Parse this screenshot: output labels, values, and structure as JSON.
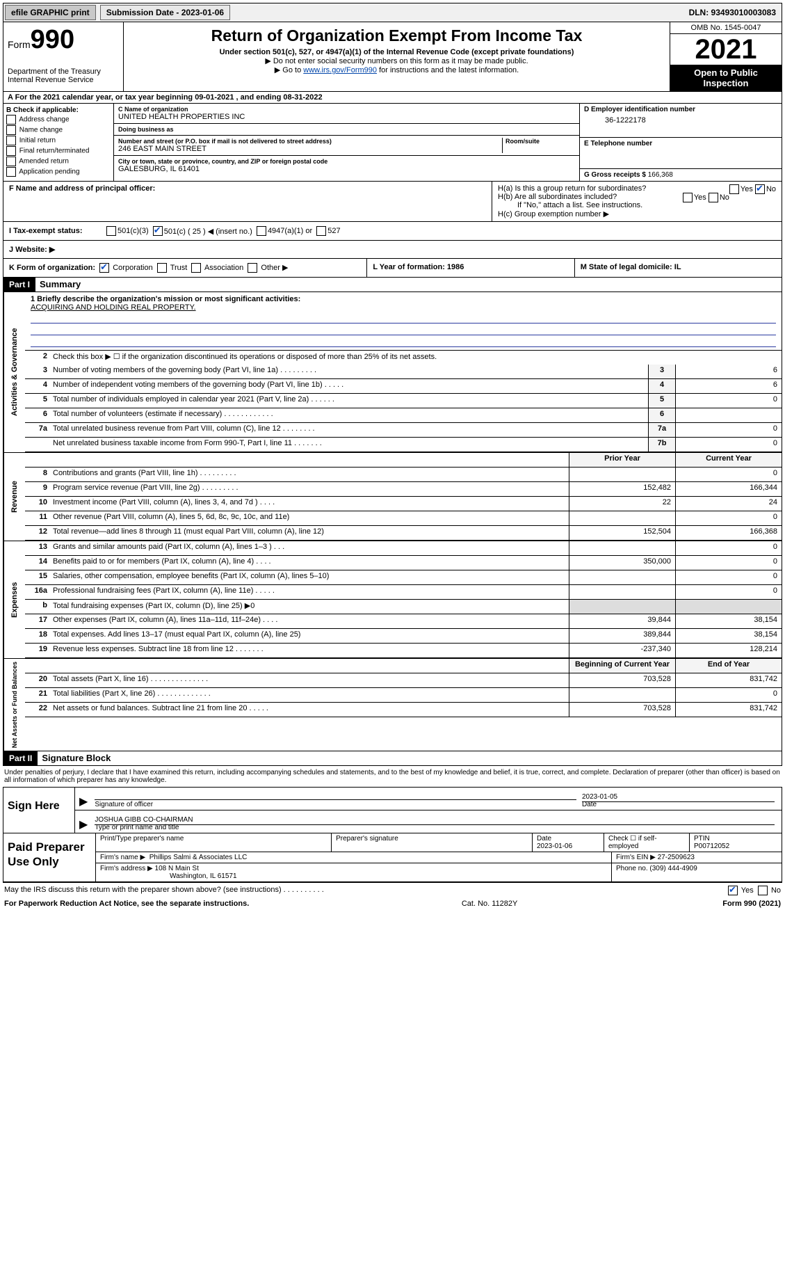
{
  "topbar": {
    "efile": "efile GRAPHIC print",
    "sub_label": "Submission Date - 2023-01-06",
    "dln": "DLN: 93493010003083"
  },
  "header": {
    "form_prefix": "Form",
    "form_no": "990",
    "dept": "Department of the Treasury",
    "irs": "Internal Revenue Service",
    "title": "Return of Organization Exempt From Income Tax",
    "sub1": "Under section 501(c), 527, or 4947(a)(1) of the Internal Revenue Code (except private foundations)",
    "sub2": "▶ Do not enter social security numbers on this form as it may be made public.",
    "sub3_pre": "▶ Go to ",
    "sub3_link": "www.irs.gov/Form990",
    "sub3_post": " for instructions and the latest information.",
    "omb": "OMB No. 1545-0047",
    "year": "2021",
    "open": "Open to Public Inspection"
  },
  "A": {
    "text": "A For the 2021 calendar year, or tax year beginning 09-01-2021   , and ending 08-31-2022"
  },
  "B": {
    "title": "B Check if applicable:",
    "opts": [
      "Address change",
      "Name change",
      "Initial return",
      "Final return/terminated",
      "Amended return",
      "Application pending"
    ]
  },
  "C": {
    "name_lab": "C Name of organization",
    "name": "UNITED HEALTH PROPERTIES INC",
    "dba_lab": "Doing business as",
    "dba": "",
    "addr_lab": "Number and street (or P.O. box if mail is not delivered to street address)",
    "addr": "246 EAST MAIN STREET",
    "room_lab": "Room/suite",
    "city_lab": "City or town, state or province, country, and ZIP or foreign postal code",
    "city": "GALESBURG, IL  61401"
  },
  "D": {
    "lab": "D Employer identification number",
    "val": "36-1222178"
  },
  "E": {
    "lab": "E Telephone number",
    "val": ""
  },
  "G": {
    "lab": "G Gross receipts $",
    "val": "166,368"
  },
  "F": {
    "lab": "F  Name and address of principal officer:",
    "val": ""
  },
  "H": {
    "a": "H(a)  Is this a group return for subordinates?",
    "a_yes": "Yes",
    "a_no": "No",
    "b": "H(b)  Are all subordinates included?",
    "b_note": "If \"No,\" attach a list. See instructions.",
    "c": "H(c)  Group exemption number ▶"
  },
  "I": {
    "lab": "I   Tax-exempt status:",
    "o1": "501(c)(3)",
    "o2": "501(c) ( 25 ) ◀ (insert no.)",
    "o3": "4947(a)(1) or",
    "o4": "527"
  },
  "J": {
    "lab": "J   Website: ▶",
    "val": ""
  },
  "K": {
    "lab": "K Form of organization:",
    "o1": "Corporation",
    "o2": "Trust",
    "o3": "Association",
    "o4": "Other ▶"
  },
  "L": {
    "lab": "L Year of formation: 1986"
  },
  "M": {
    "lab": "M State of legal domicile: IL"
  },
  "partI": {
    "hdr": "Part I",
    "title": "Summary"
  },
  "mission": {
    "q": "1   Briefly describe the organization's mission or most significant activities:",
    "a": "ACQUIRING AND HOLDING REAL PROPERTY."
  },
  "line2": "Check this box ▶ ☐  if the organization discontinued its operations or disposed of more than 25% of its net assets.",
  "govrows": [
    {
      "n": "3",
      "t": "Number of voting members of the governing body (Part VI, line 1a)   .    .    .    .    .    .    .    .    .",
      "b": "3",
      "v": "6"
    },
    {
      "n": "4",
      "t": "Number of independent voting members of the governing body (Part VI, line 1b)   .    .    .    .    .",
      "b": "4",
      "v": "6"
    },
    {
      "n": "5",
      "t": "Total number of individuals employed in calendar year 2021 (Part V, line 2a)   .    .    .    .    .    .",
      "b": "5",
      "v": "0"
    },
    {
      "n": "6",
      "t": "Total number of volunteers (estimate if necessary)   .    .    .    .    .    .    .    .    .    .    .    .",
      "b": "6",
      "v": ""
    },
    {
      "n": "7a",
      "t": "Total unrelated business revenue from Part VIII, column (C), line 12   .    .    .    .    .    .    .    .",
      "b": "7a",
      "v": "0"
    },
    {
      "n": "",
      "t": "Net unrelated business taxable income from Form 990-T, Part I, line 11   .    .    .    .    .    .    .",
      "b": "7b",
      "v": "0"
    }
  ],
  "colhdr": {
    "prior": "Prior Year",
    "curr": "Current Year",
    "boy": "Beginning of Current Year",
    "eoy": "End of Year"
  },
  "rev": [
    {
      "n": "8",
      "t": "Contributions and grants (Part VIII, line 1h)   .    .    .    .    .    .    .    .    .",
      "p": "",
      "c": "0"
    },
    {
      "n": "9",
      "t": "Program service revenue (Part VIII, line 2g)   .    .    .    .    .    .    .    .    .",
      "p": "152,482",
      "c": "166,344"
    },
    {
      "n": "10",
      "t": "Investment income (Part VIII, column (A), lines 3, 4, and 7d )   .    .    .    .",
      "p": "22",
      "c": "24"
    },
    {
      "n": "11",
      "t": "Other revenue (Part VIII, column (A), lines 5, 6d, 8c, 9c, 10c, and 11e)",
      "p": "",
      "c": "0"
    },
    {
      "n": "12",
      "t": "Total revenue—add lines 8 through 11 (must equal Part VIII, column (A), line 12)",
      "p": "152,504",
      "c": "166,368"
    }
  ],
  "exp": [
    {
      "n": "13",
      "t": "Grants and similar amounts paid (Part IX, column (A), lines 1–3 )   .    .    .",
      "p": "",
      "c": "0"
    },
    {
      "n": "14",
      "t": "Benefits paid to or for members (Part IX, column (A), line 4)   .    .    .    .",
      "p": "350,000",
      "c": "0"
    },
    {
      "n": "15",
      "t": "Salaries, other compensation, employee benefits (Part IX, column (A), lines 5–10)",
      "p": "",
      "c": "0"
    },
    {
      "n": "16a",
      "t": "Professional fundraising fees (Part IX, column (A), line 11e)   .    .    .    .    .",
      "p": "",
      "c": "0"
    },
    {
      "n": "b",
      "t": "Total fundraising expenses (Part IX, column (D), line 25) ▶0",
      "p": "",
      "c": "",
      "shade": true
    },
    {
      "n": "17",
      "t": "Other expenses (Part IX, column (A), lines 11a–11d, 11f–24e)   .    .    .    .",
      "p": "39,844",
      "c": "38,154"
    },
    {
      "n": "18",
      "t": "Total expenses. Add lines 13–17 (must equal Part IX, column (A), line 25)",
      "p": "389,844",
      "c": "38,154"
    },
    {
      "n": "19",
      "t": "Revenue less expenses. Subtract line 18 from line 12   .    .    .    .    .    .    .",
      "p": "-237,340",
      "c": "128,214"
    }
  ],
  "net": [
    {
      "n": "20",
      "t": "Total assets (Part X, line 16)   .    .    .    .    .    .    .    .    .    .    .    .    .    .",
      "p": "703,528",
      "c": "831,742"
    },
    {
      "n": "21",
      "t": "Total liabilities (Part X, line 26)   .    .    .    .    .    .    .    .    .    .    .    .    .",
      "p": "",
      "c": "0"
    },
    {
      "n": "22",
      "t": "Net assets or fund balances. Subtract line 21 from line 20   .    .    .    .    .",
      "p": "703,528",
      "c": "831,742"
    }
  ],
  "vtabs": {
    "gov": "Activities & Governance",
    "rev": "Revenue",
    "exp": "Expenses",
    "net": "Net Assets or Fund Balances"
  },
  "partII": {
    "hdr": "Part II",
    "title": "Signature Block"
  },
  "sig": {
    "note": "Under penalties of perjury, I declare that I have examined this return, including accompanying schedules and statements, and to the best of my knowledge and belief, it is true, correct, and complete. Declaration of preparer (other than officer) is based on all information of which preparer has any knowledge.",
    "here": "Sign Here",
    "l1a": "Signature of officer",
    "l1b": "Date",
    "date": "2023-01-05",
    "l2v": "JOSHUA GIBB CO-CHAIRMAN",
    "l2a": "Type or print name and title"
  },
  "prep": {
    "title": "Paid Preparer Use Only",
    "h1": "Print/Type preparer's name",
    "h2": "Preparer's signature",
    "h3": "Date",
    "h3v": "2023-01-06",
    "h4": "Check ☐ if self-employed",
    "h5": "PTIN",
    "h5v": "P00712052",
    "f1": "Firm's name    ▶",
    "f1v": "Phillips Salmi & Associates LLC",
    "f2": "Firm's EIN ▶",
    "f2v": "27-2509623",
    "a1": "Firm's address ▶",
    "a1v": "108 N Main St",
    "a2v": "Washington, IL  61571",
    "p1": "Phone no.",
    "p1v": "(309) 444-4909"
  },
  "footer": {
    "q": "May the IRS discuss this return with the preparer shown above? (see instructions)   .    .    .    .    .    .    .    .    .    .",
    "yes": "Yes",
    "no": "No",
    "pra": "For Paperwork Reduction Act Notice, see the separate instructions.",
    "cat": "Cat. No. 11282Y",
    "form": "Form 990 (2021)"
  }
}
